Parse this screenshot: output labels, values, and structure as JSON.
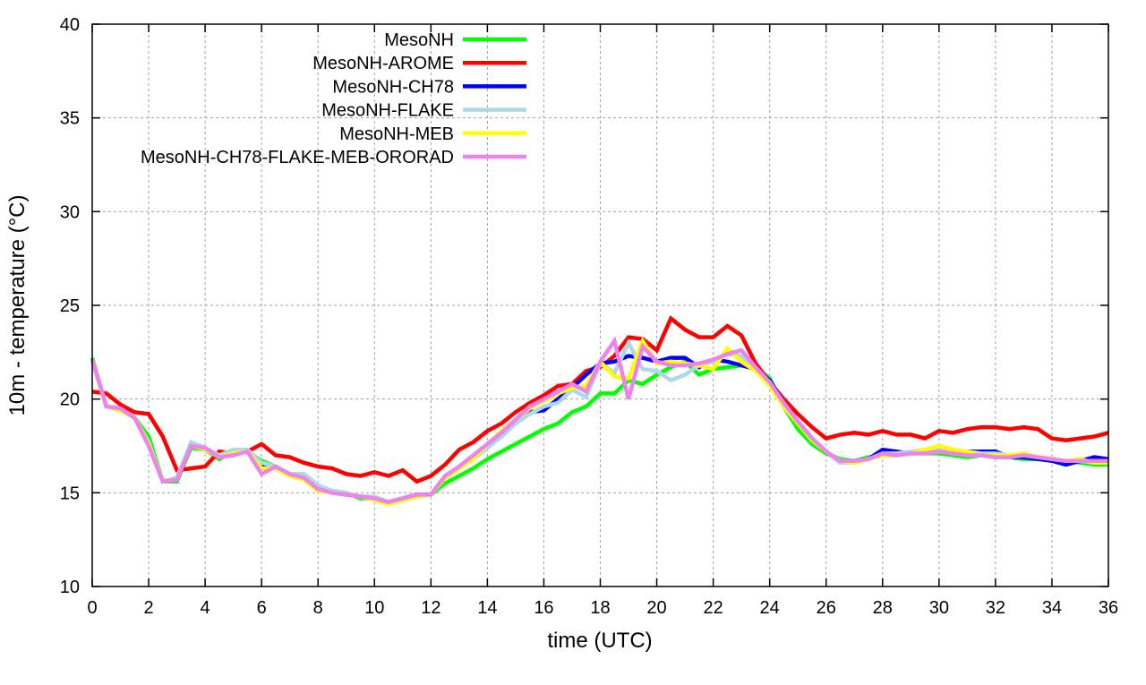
{
  "chart_data": {
    "type": "line",
    "title": "",
    "xlabel": "time (UTC)",
    "ylabel": "10m - temperature (°C)",
    "xlim": [
      0,
      36
    ],
    "ylim": [
      10,
      40
    ],
    "xticks": [
      0,
      2,
      4,
      6,
      8,
      10,
      12,
      14,
      16,
      18,
      20,
      22,
      24,
      26,
      28,
      30,
      32,
      34,
      36
    ],
    "yticks": [
      10,
      15,
      20,
      25,
      30,
      35,
      40
    ],
    "grid": true,
    "legend_position": "top-left",
    "x_step": 0.5,
    "series": [
      {
        "name": "MesoNH",
        "color": "#00ff00",
        "values": [
          22.2,
          19.6,
          19.4,
          19.0,
          18.0,
          15.6,
          15.6,
          17.4,
          17.3,
          16.8,
          17.2,
          17.2,
          16.7,
          16.4,
          16.0,
          15.9,
          15.3,
          15.1,
          15.0,
          14.7,
          14.7,
          14.5,
          14.6,
          14.8,
          14.9,
          15.5,
          15.9,
          16.3,
          16.8,
          17.2,
          17.6,
          18.0,
          18.4,
          18.7,
          19.3,
          19.6,
          20.3,
          20.3,
          21.0,
          20.8,
          21.3,
          21.7,
          22.0,
          21.3,
          21.6,
          21.7,
          21.8,
          21.7,
          21.1,
          19.6,
          18.4,
          17.6,
          17.1,
          16.8,
          16.7,
          16.9,
          17.0,
          17.0,
          17.1,
          17.1,
          17.1,
          17.0,
          16.9,
          17.0,
          16.9,
          16.9,
          16.8,
          16.8,
          16.7,
          16.7,
          16.6,
          16.5,
          16.5
        ]
      },
      {
        "name": "MesoNH-AROME",
        "color": "#ff0000",
        "values": [
          20.4,
          20.3,
          19.7,
          19.3,
          19.2,
          18.0,
          16.2,
          16.3,
          16.4,
          17.2,
          17.1,
          17.2,
          17.6,
          17.0,
          16.9,
          16.6,
          16.4,
          16.3,
          16.0,
          15.9,
          16.1,
          15.9,
          16.2,
          15.6,
          15.9,
          16.5,
          17.3,
          17.7,
          18.3,
          18.7,
          19.3,
          19.8,
          20.2,
          20.7,
          20.8,
          21.5,
          21.7,
          22.3,
          23.3,
          23.2,
          22.6,
          24.3,
          23.7,
          23.3,
          23.3,
          23.9,
          23.4,
          21.9,
          20.9,
          20.0,
          19.2,
          18.5,
          17.9,
          18.1,
          18.2,
          18.1,
          18.3,
          18.1,
          18.1,
          17.9,
          18.3,
          18.2,
          18.4,
          18.5,
          18.5,
          18.4,
          18.5,
          18.4,
          17.9,
          17.8,
          17.9,
          18.0,
          18.2
        ]
      },
      {
        "name": "MesoNH-CH78",
        "color": "#0000ff",
        "values": [
          22.1,
          19.6,
          19.5,
          19.0,
          17.6,
          15.6,
          15.7,
          17.5,
          17.3,
          16.9,
          17.2,
          17.2,
          16.5,
          16.3,
          16.0,
          15.8,
          15.3,
          15.0,
          14.9,
          14.8,
          14.7,
          14.5,
          14.7,
          14.9,
          14.9,
          15.8,
          16.3,
          16.9,
          17.5,
          18.1,
          18.8,
          19.3,
          19.4,
          20.0,
          20.6,
          21.3,
          21.9,
          22.0,
          22.3,
          22.2,
          22.0,
          22.2,
          22.2,
          21.7,
          22.1,
          22.0,
          21.8,
          21.6,
          21.0,
          19.8,
          18.8,
          17.9,
          17.2,
          16.6,
          16.7,
          16.8,
          17.3,
          17.2,
          17.1,
          17.2,
          17.2,
          17.2,
          17.2,
          17.2,
          17.2,
          16.9,
          16.9,
          16.8,
          16.7,
          16.5,
          16.7,
          16.9,
          16.8
        ]
      },
      {
        "name": "MesoNH-FLAKE",
        "color": "#add8e6",
        "values": [
          22.1,
          19.6,
          19.5,
          19.0,
          17.7,
          15.6,
          15.8,
          17.7,
          17.4,
          17.0,
          17.3,
          17.3,
          16.6,
          16.4,
          16.0,
          16.0,
          15.4,
          15.1,
          15.0,
          14.8,
          14.8,
          14.5,
          14.6,
          14.8,
          14.9,
          15.8,
          16.3,
          16.8,
          17.4,
          18.0,
          18.7,
          19.2,
          19.6,
          19.8,
          20.5,
          20.1,
          21.9,
          21.4,
          23.0,
          21.6,
          21.5,
          21.0,
          21.3,
          21.8,
          22.0,
          22.4,
          22.3,
          21.5,
          20.9,
          19.7,
          18.8,
          17.9,
          17.2,
          16.6,
          16.6,
          16.8,
          17.1,
          17.1,
          17.2,
          17.3,
          17.4,
          17.2,
          17.2,
          17.1,
          17.1,
          17.0,
          17.0,
          16.9,
          16.8,
          16.7,
          16.7,
          16.6,
          16.6
        ]
      },
      {
        "name": "MesoNH-MEB",
        "color": "#ffff00",
        "values": [
          22.1,
          19.6,
          19.4,
          19.0,
          17.6,
          15.6,
          15.7,
          17.5,
          17.3,
          16.9,
          17.1,
          17.2,
          16.3,
          16.3,
          15.9,
          15.7,
          15.1,
          15.0,
          14.9,
          14.8,
          14.6,
          14.4,
          14.6,
          14.8,
          14.9,
          15.8,
          16.3,
          16.8,
          17.6,
          18.3,
          18.9,
          19.5,
          19.9,
          20.3,
          20.6,
          20.7,
          22.0,
          21.2,
          21.1,
          23.1,
          21.9,
          22.0,
          21.9,
          21.8,
          21.6,
          22.7,
          22.0,
          21.5,
          20.7,
          19.6,
          18.7,
          17.8,
          17.2,
          16.7,
          16.6,
          16.8,
          17.0,
          17.0,
          17.1,
          17.3,
          17.5,
          17.3,
          17.2,
          17.0,
          17.0,
          17.0,
          17.1,
          16.9,
          16.8,
          16.7,
          16.8,
          16.6,
          16.6
        ]
      },
      {
        "name": "MesoNH-CH78-FLAKE-MEB-ORORAD",
        "color": "#ee82ee",
        "values": [
          22.1,
          19.6,
          19.5,
          19.0,
          17.5,
          15.6,
          15.7,
          17.5,
          17.4,
          16.9,
          17.0,
          17.2,
          16.0,
          16.4,
          16.0,
          15.8,
          15.2,
          15.0,
          14.9,
          14.8,
          14.7,
          14.5,
          14.7,
          14.9,
          14.9,
          15.9,
          16.4,
          17.0,
          17.6,
          18.2,
          18.9,
          19.6,
          20.0,
          20.4,
          20.8,
          20.4,
          22.0,
          23.1,
          20.0,
          22.8,
          22.0,
          21.8,
          21.8,
          21.9,
          22.1,
          22.4,
          22.6,
          21.7,
          20.9,
          19.8,
          18.8,
          17.9,
          17.2,
          16.7,
          16.7,
          16.8,
          17.1,
          17.0,
          17.1,
          17.1,
          17.2,
          17.1,
          17.0,
          17.0,
          16.9,
          16.9,
          17.0,
          16.9,
          16.8,
          16.7,
          16.7,
          16.7,
          16.7
        ]
      }
    ]
  }
}
